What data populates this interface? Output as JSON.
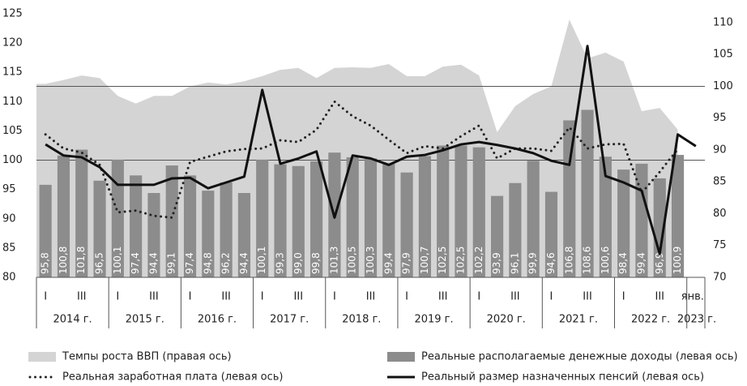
{
  "chart_data": {
    "type": "combo",
    "categories": [
      "I",
      null,
      "III",
      null,
      "I",
      null,
      "III",
      null,
      "I",
      null,
      "III",
      null,
      "I",
      null,
      "III",
      null,
      "I",
      null,
      "III",
      null,
      "I",
      null,
      "III",
      null,
      "I",
      null,
      "III",
      null,
      "I",
      null,
      "III",
      null,
      "I",
      null,
      "III",
      null,
      "янв."
    ],
    "years": [
      "2014 г.",
      "2015 г.",
      "2016 г.",
      "2017 г.",
      "2018 г.",
      "2019 г.",
      "2020 г.",
      "2021 г.",
      "2022 г.",
      "2023 г."
    ],
    "ylim": [
      80,
      125
    ],
    "yticks": [
      80,
      85,
      90,
      95,
      100,
      105,
      110,
      115,
      120,
      125
    ],
    "y2lim": [
      70,
      111.4
    ],
    "y2ticks": [
      70,
      75,
      80,
      85,
      90,
      95,
      100,
      105,
      110
    ],
    "reference_lines": [
      {
        "axis": "y",
        "value": 100
      },
      {
        "axis": "y2",
        "value": 100
      }
    ],
    "series": [
      {
        "name": "Темпы роста ВВП (правая ось)",
        "kind": "area",
        "axis": "y2",
        "color": "#d4d4d4",
        "values": [
          100.4,
          101,
          101.7,
          101.3,
          98.5,
          97.3,
          98.5,
          98.5,
          100,
          100.6,
          100.3,
          100.8,
          101.6,
          102.6,
          102.9,
          101.3,
          102.9,
          103,
          102.9,
          103.5,
          101.6,
          101.6,
          103.1,
          103.4,
          101.7,
          92.8,
          96.9,
          98.8,
          100,
          110.5,
          104.4,
          105.3,
          103.9,
          96.1,
          96.6,
          93.2,
          null
        ]
      },
      {
        "name": "Реальные располагаемые денежные доходы (левая ось)",
        "kind": "bar",
        "color": "#8c8c8c",
        "values": [
          95.8,
          100.8,
          101.8,
          96.5,
          100.1,
          97.4,
          94.4,
          99.1,
          97.4,
          94.8,
          96.2,
          94.4,
          100.1,
          99.3,
          99.0,
          99.8,
          101.3,
          100.5,
          100.3,
          99.4,
          97.9,
          100.7,
          102.5,
          102.5,
          102.2,
          93.9,
          96.1,
          99.9,
          94.6,
          106.8,
          108.6,
          100.6,
          98.4,
          99.4,
          96.9,
          100.9,
          null
        ],
        "value_labels": [
          "95,8",
          "100,8",
          "101,8",
          "96,5",
          "100,1",
          "97,4",
          "94,4",
          "99,1",
          "97,4",
          "94,8",
          "96,2",
          "94,4",
          "100,1",
          "99,3",
          "99,0",
          "99,8",
          "101,3",
          "100,5",
          "100,3",
          "99,4",
          "97,9",
          "100,7",
          "102,5",
          "102,5",
          "102,2",
          "93,9",
          "96,1",
          "99,9",
          "94,6",
          "106,8",
          "108,6",
          "100,6",
          "98,4",
          "99,4",
          "96,9",
          "100,9",
          null
        ]
      },
      {
        "name": "Реальная заработная плата (левая ось)",
        "kind": "dotted",
        "color": "#222222",
        "values": [
          104.4,
          102,
          101.3,
          99.2,
          91.1,
          91.4,
          90.5,
          90.2,
          99.7,
          100.6,
          101.5,
          101.9,
          102,
          103.4,
          103.1,
          105.2,
          110,
          107.5,
          105.9,
          103.5,
          101.2,
          102.4,
          102,
          104.1,
          105.9,
          100.3,
          102,
          102,
          101.6,
          105.6,
          102,
          102.7,
          102.8,
          94.4,
          98,
          101.9,
          null
        ]
      },
      {
        "name": "Реальный размер назначенных пенсий (левая ось)",
        "kind": "line",
        "color": "#111111",
        "values": [
          102.7,
          100.8,
          100.5,
          98.8,
          95.8,
          95.8,
          95.8,
          96.9,
          97,
          95.2,
          96.2,
          97.2,
          112,
          99.4,
          100.3,
          101.5,
          90.2,
          100.8,
          100.3,
          99.2,
          100.6,
          100.9,
          101.7,
          102.7,
          103.1,
          102.6,
          102,
          101.2,
          99.9,
          99.2,
          119.5,
          97.3,
          96.2,
          94.8,
          84,
          104.4,
          102.4
        ]
      }
    ]
  }
}
